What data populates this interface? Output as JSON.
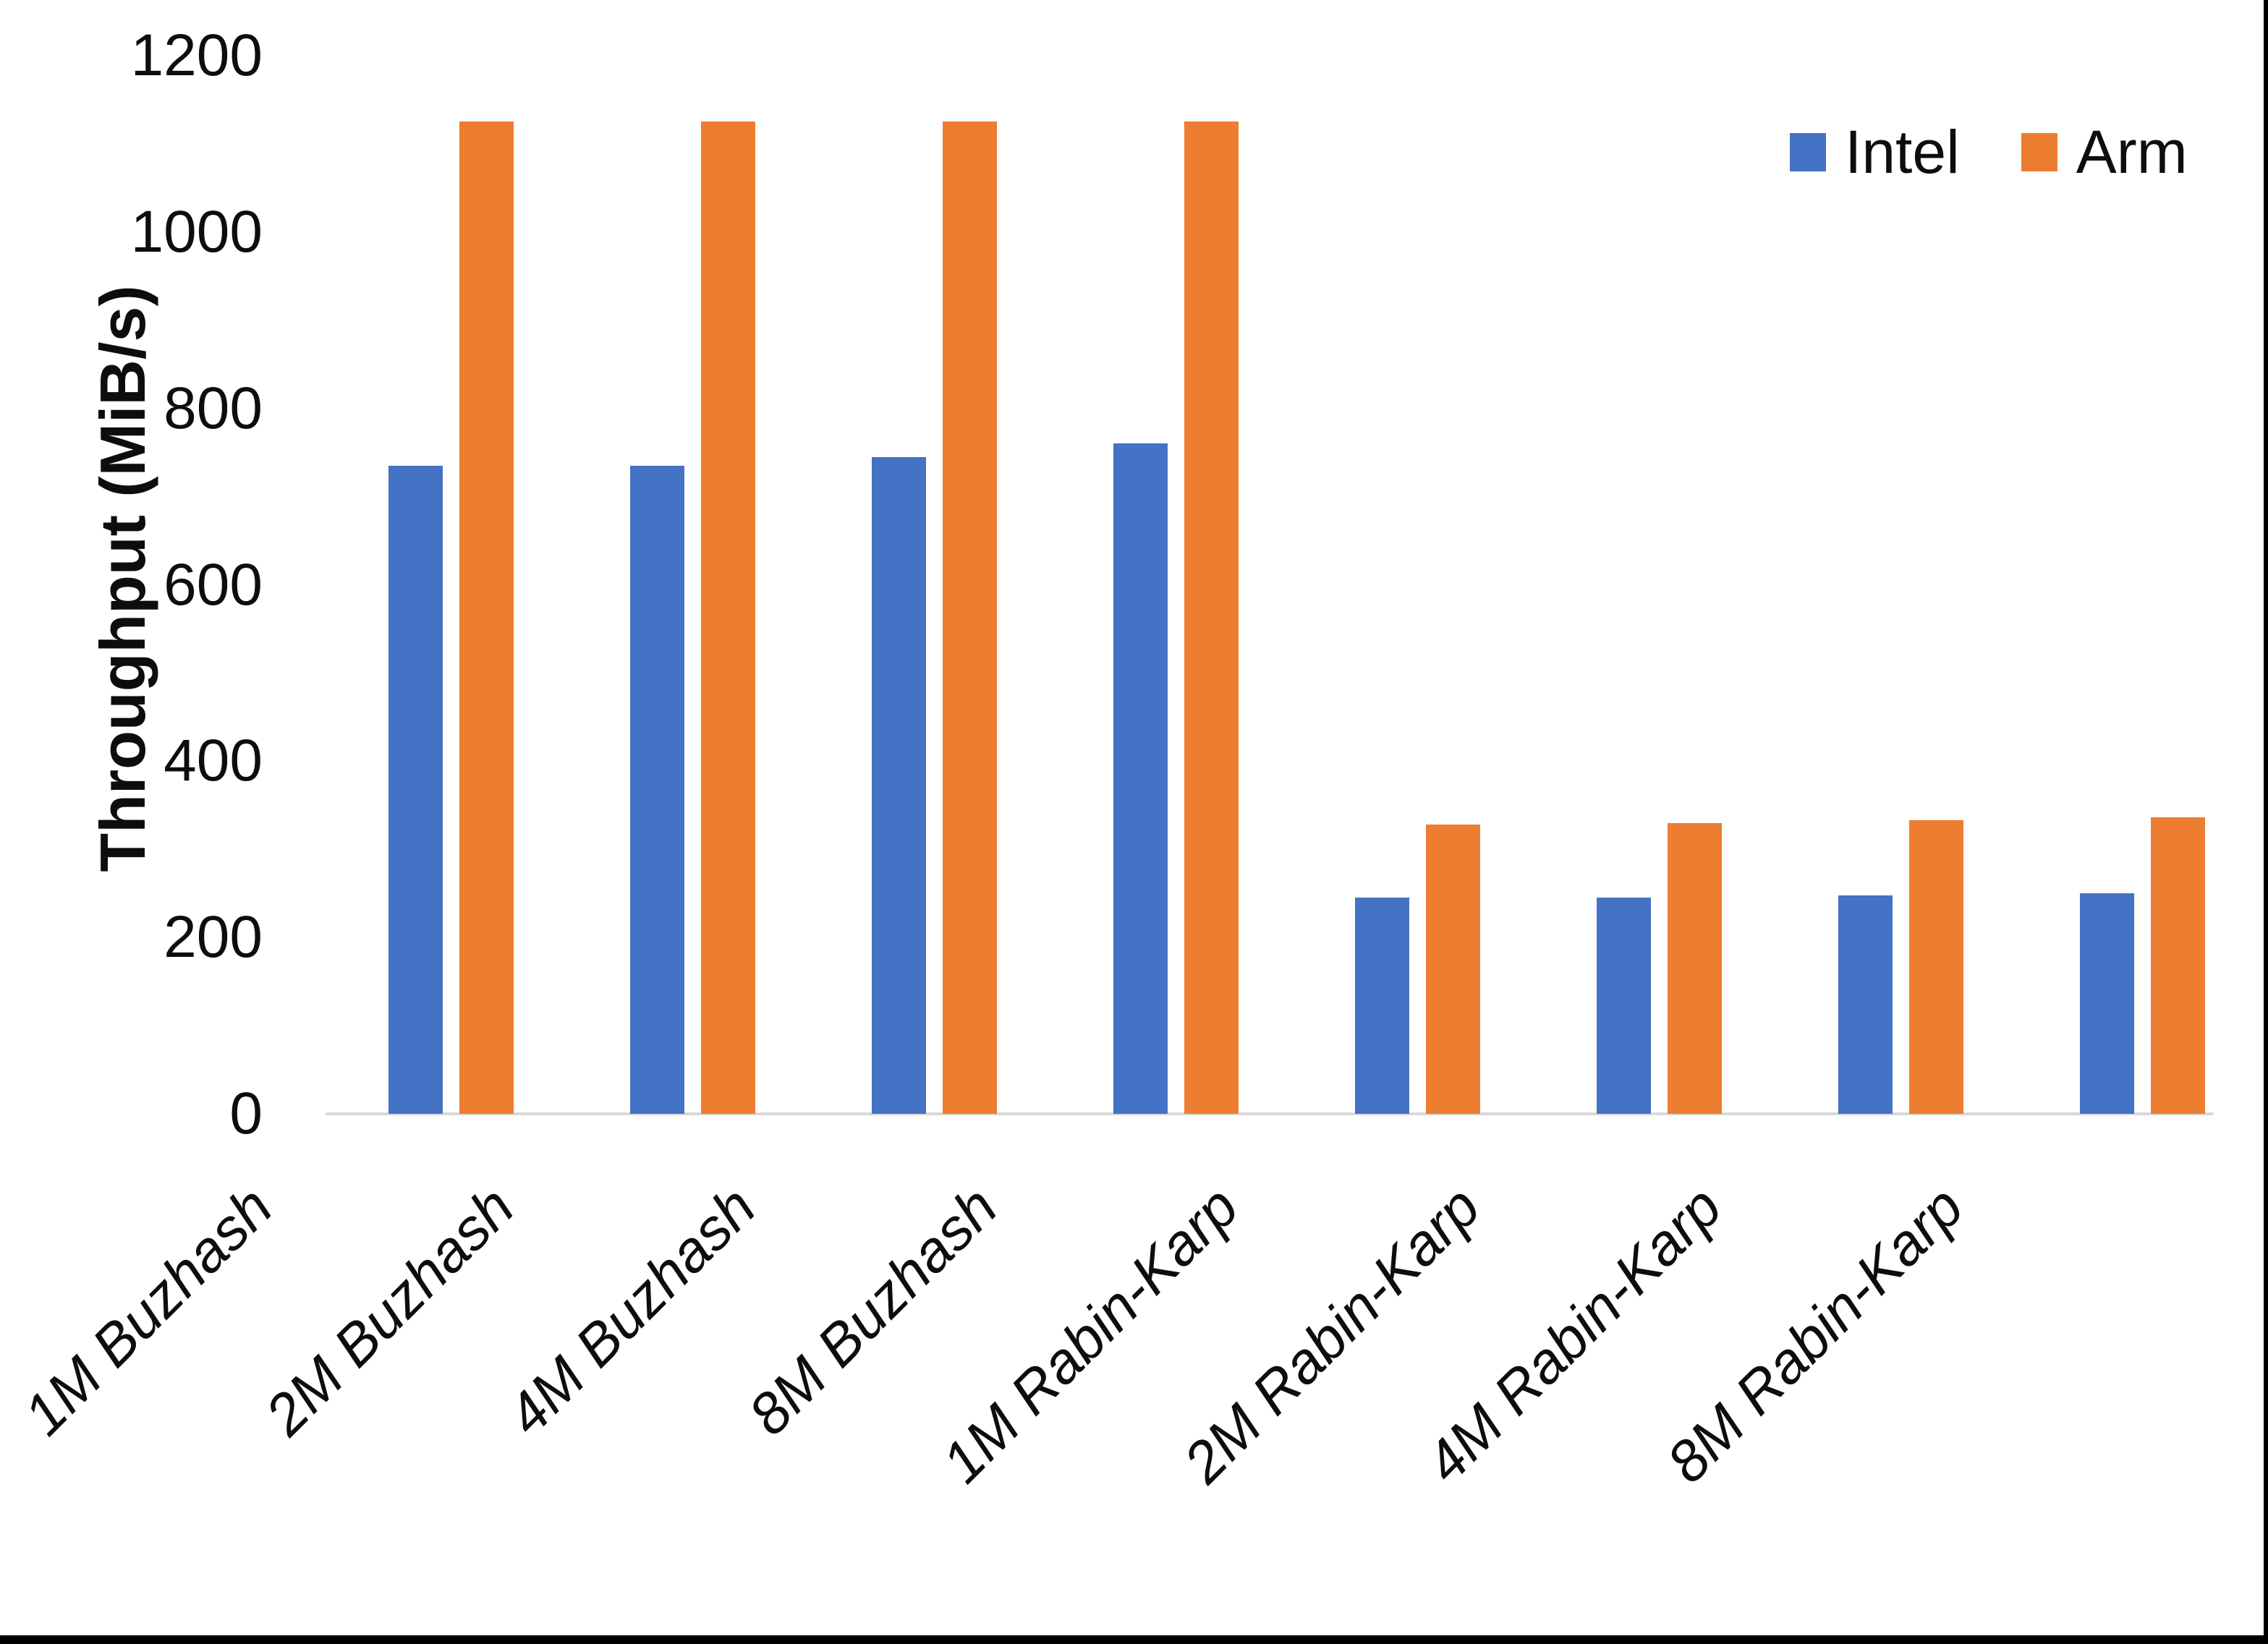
{
  "chart_data": {
    "type": "bar",
    "title": "",
    "xlabel": "",
    "ylabel": "Throughput (MiB/s)",
    "ylim": [
      0,
      1200
    ],
    "ytick_values": [
      1200,
      1000,
      800,
      600,
      400,
      200,
      0
    ],
    "ytick_labels": [
      "1200",
      "1000",
      "800",
      "600",
      "400",
      "200",
      "0"
    ],
    "grid": false,
    "legend_position": "top-right",
    "categories": [
      "1M Buzhash",
      "2M Buzhash",
      "4M Buzhash",
      "8M Buzhash",
      "1M Rabin-Karp",
      "2M Rabin-Karp",
      "4M Rabin-Karp",
      "8M Rabin-Karp"
    ],
    "series": [
      {
        "name": "Intel",
        "color": "#4472C4",
        "values": [
          735,
          735,
          745,
          760,
          245,
          245,
          248,
          250
        ]
      },
      {
        "name": "Arm",
        "color": "#ED7D31",
        "values": [
          1125,
          1125,
          1125,
          1125,
          328,
          330,
          333,
          336
        ]
      }
    ],
    "axis_line_color": "#D9D9D9"
  },
  "legend": {
    "items": [
      {
        "label": "Intel",
        "color": "#4472C4"
      },
      {
        "label": "Arm",
        "color": "#ED7D31"
      }
    ]
  },
  "axis": {
    "y_title": "Throughput (MiB/s)"
  }
}
